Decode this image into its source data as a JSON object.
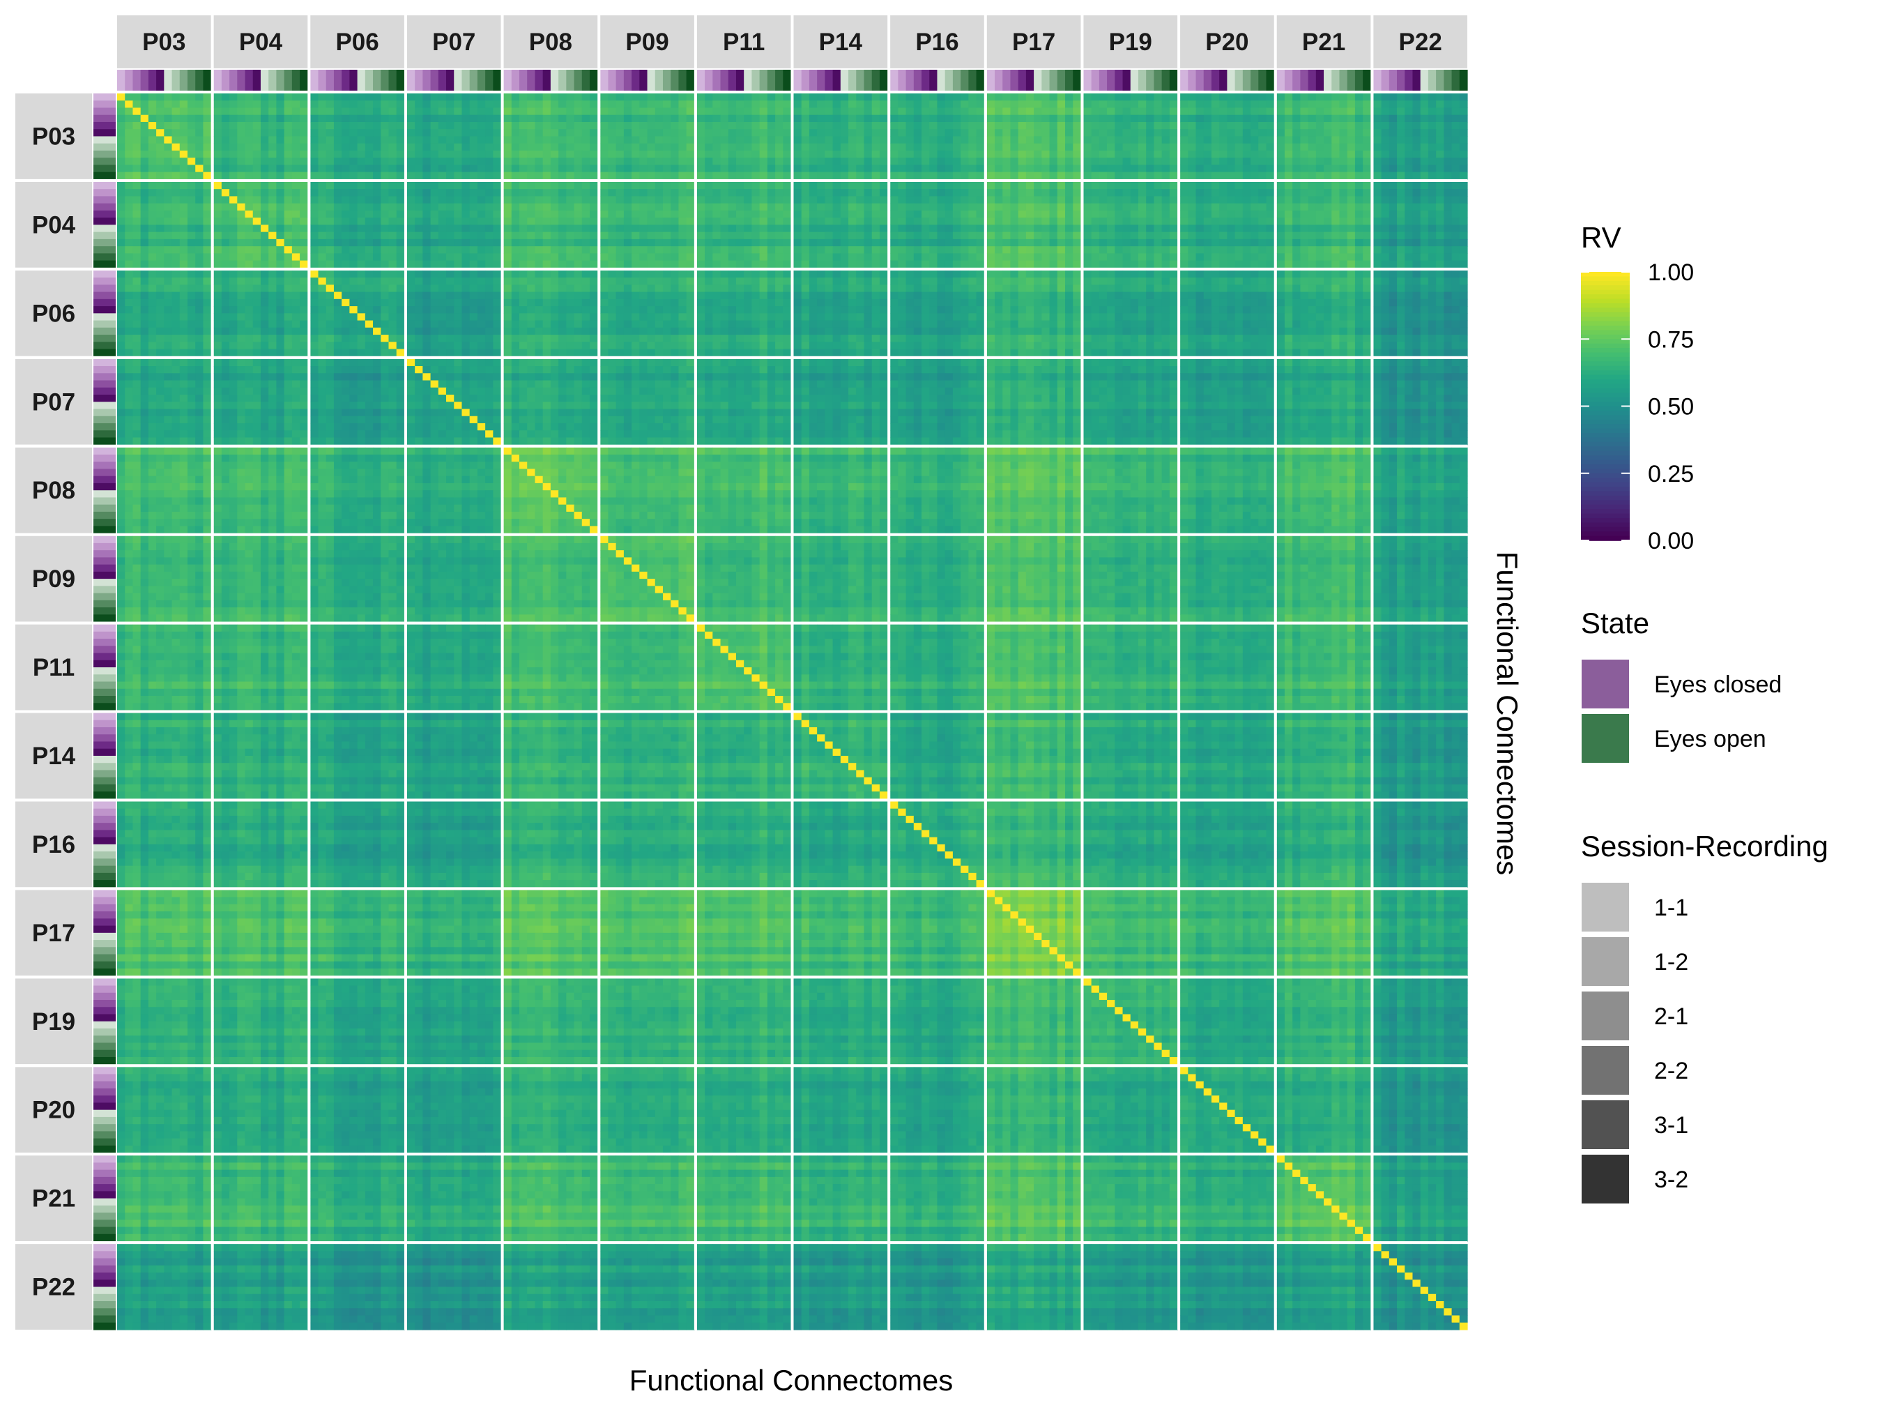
{
  "chart_data": {
    "type": "heatmap",
    "xlabel": "Functional Connectomes",
    "ylabel": "Functional Connectomes",
    "participants": [
      "P03",
      "P04",
      "P06",
      "P07",
      "P08",
      "P09",
      "P11",
      "P14",
      "P16",
      "P17",
      "P19",
      "P20",
      "P21",
      "P22"
    ],
    "participant_level": [
      0.68,
      0.64,
      0.58,
      0.54,
      0.72,
      0.68,
      0.69,
      0.62,
      0.6,
      0.75,
      0.6,
      0.56,
      0.7,
      0.48
    ],
    "recordings_per_participant": 12,
    "color_scale": {
      "title": "RV",
      "min": 0.0,
      "max": 1.0,
      "ticks": [
        "1.00",
        "0.75",
        "0.50",
        "0.25",
        "0.00"
      ],
      "colormap": "viridis"
    },
    "diagonal_value": 1.0,
    "state_legend": {
      "title": "State",
      "items": [
        {
          "label": "Eyes closed",
          "color": "#8b5e9b"
        },
        {
          "label": "Eyes open",
          "color": "#3a7a4c"
        }
      ]
    },
    "session_legend": {
      "title": "Session-Recording",
      "items": [
        {
          "label": "1-1",
          "color": "#bebebe"
        },
        {
          "label": "1-2",
          "color": "#a8a8a8"
        },
        {
          "label": "2-1",
          "color": "#8e8e8e"
        },
        {
          "label": "2-2",
          "color": "#727272"
        },
        {
          "label": "3-1",
          "color": "#525252"
        },
        {
          "label": "3-2",
          "color": "#333333"
        }
      ]
    },
    "annotation_colors": {
      "eyes_closed": [
        "#d2b4dc",
        "#bf94cb",
        "#a773b8",
        "#8d50a0",
        "#6d2a86",
        "#4d0c63"
      ],
      "eyes_open": [
        "#d3e3d5",
        "#a9c8ae",
        "#7ea987",
        "#548a60",
        "#2d6a3c",
        "#0b4d1c"
      ]
    }
  }
}
